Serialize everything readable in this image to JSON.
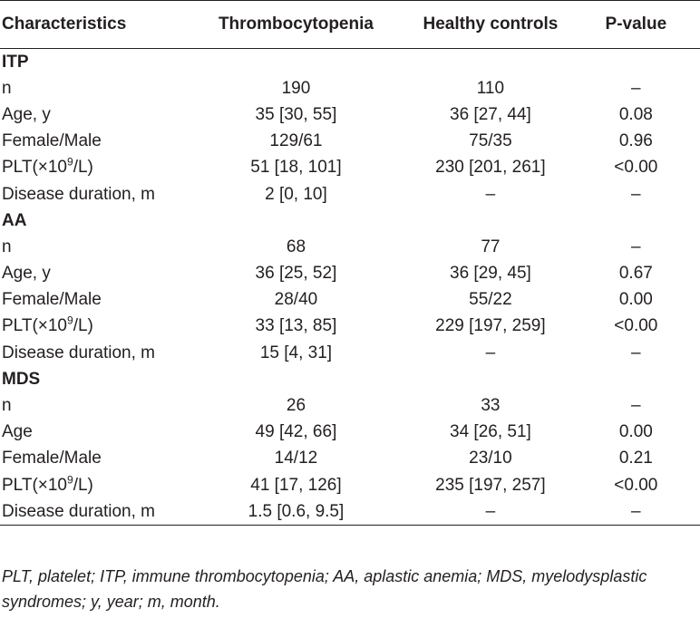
{
  "table": {
    "headers": [
      "Characteristics",
      "Thrombocytopenia",
      "Healthy controls",
      "P-value"
    ],
    "groups": [
      {
        "name": "ITP",
        "rows": [
          {
            "label": "n",
            "thrombo": "190",
            "healthy": "110",
            "p": "–"
          },
          {
            "label": "Age, y",
            "thrombo": "35 [30, 55]",
            "healthy": "36 [27, 44]",
            "p": "0.08"
          },
          {
            "label": "Female/Male",
            "thrombo": "129/61",
            "healthy": "75/35",
            "p": "0.96"
          },
          {
            "label": "PLT",
            "thrombo": "51 [18, 101]",
            "healthy": "230 [201, 261]",
            "p": "<0.00"
          },
          {
            "label": "Disease duration, m",
            "thrombo": "2 [0, 10]",
            "healthy": "–",
            "p": "–"
          }
        ]
      },
      {
        "name": "AA",
        "rows": [
          {
            "label": "n",
            "thrombo": "68",
            "healthy": "77",
            "p": "–"
          },
          {
            "label": "Age, y",
            "thrombo": "36 [25, 52]",
            "healthy": "36 [29, 45]",
            "p": "0.67"
          },
          {
            "label": "Female/Male",
            "thrombo": "28/40",
            "healthy": "55/22",
            "p": "0.00"
          },
          {
            "label": "PLT",
            "thrombo": "33 [13, 85]",
            "healthy": "229 [197, 259]",
            "p": "<0.00"
          },
          {
            "label": "Disease duration, m",
            "thrombo": "15 [4, 31]",
            "healthy": "–",
            "p": "–"
          }
        ]
      },
      {
        "name": "MDS",
        "rows": [
          {
            "label": "n",
            "thrombo": "26",
            "healthy": "33",
            "p": "–"
          },
          {
            "label": "Age",
            "thrombo": "49 [42, 66]",
            "healthy": "34 [26, 51]",
            "p": "0.00"
          },
          {
            "label": "Female/Male",
            "thrombo": "14/12",
            "healthy": "23/10",
            "p": "0.21"
          },
          {
            "label": "PLT",
            "thrombo": "41 [17, 126]",
            "healthy": "235 [197, 257]",
            "p": "<0.00"
          },
          {
            "label": "Disease duration, m",
            "thrombo": "1.5 [0.6, 9.5]",
            "healthy": "–",
            "p": "–"
          }
        ]
      }
    ]
  },
  "plt_unit": {
    "open": "(×10",
    "exp": "9",
    "close": "/L)"
  },
  "footnote": "PLT, platelet; ITP, immune thrombocytopenia; AA, aplastic anemia; MDS, myelodysplastic syndromes; y, year; m, month."
}
